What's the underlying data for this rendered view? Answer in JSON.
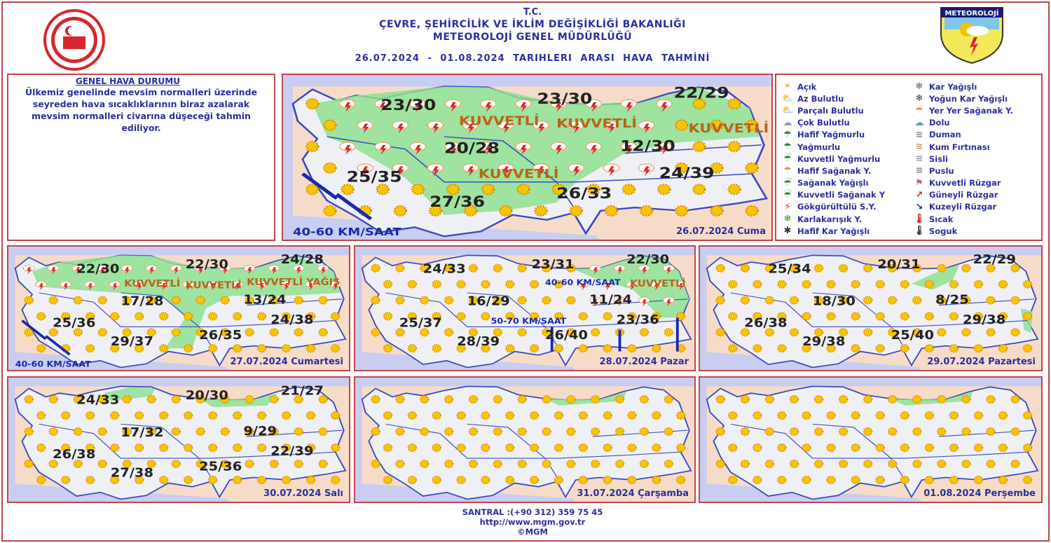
{
  "header": {
    "line1": "T.C.",
    "line2": "ÇEVRE, ŞEHİRCİLİK VE İKLİM DEĞİŞİKLİĞİ BAKANLIĞI",
    "line3": "METEOROLOJİ  GENEL  MÜDÜRLÜĞÜ",
    "line4": "26.07.2024  -  01.08.2024   TARIHLERI  ARASI  HAVA  TAHMİNİ"
  },
  "logos": {
    "right": "METEOROLOJİ"
  },
  "genel": {
    "title": "GENEL HAVA DURUMU",
    "text": "Ülkemiz genelinde mevsim normalleri üzerinde seyreden hava sıcaklıklarının biraz azalarak mevsim normalleri civarına düşeceği tahmin ediliyor."
  },
  "colors": {
    "accent": "#2a2fa0",
    "border": "#c0474c",
    "land": "#eef0f6",
    "sea": "#c9cdf0",
    "neighbor": "#f6dcc8",
    "rain_area": "#8fe08f"
  },
  "legend": [
    {
      "icon": "sun-icon",
      "label": "Açık"
    },
    {
      "icon": "sun-cloud-icon",
      "label": "Az Bulutlu"
    },
    {
      "icon": "partly-cloudy-icon",
      "label": "Parçalı Bulutlu"
    },
    {
      "icon": "cloudy-icon",
      "label": "Çok Bulutlu"
    },
    {
      "icon": "light-rain-icon",
      "label": "Hafif Yağmurlu"
    },
    {
      "icon": "rain-icon",
      "label": "Yağmurlu"
    },
    {
      "icon": "heavy-rain-icon",
      "label": "Kuvvetli Yağmurlu"
    },
    {
      "icon": "light-shower-icon",
      "label": "Hafif Sağanak Y."
    },
    {
      "icon": "shower-icon",
      "label": "Sağanak Yağışlı"
    },
    {
      "icon": "heavy-shower-icon",
      "label": "Kuvvetli Sağanak Y"
    },
    {
      "icon": "thunderstorm-icon",
      "label": "Gökgürültülü S.Y."
    },
    {
      "icon": "sleet-icon",
      "label": "Karlakarışık Y."
    },
    {
      "icon": "light-snow-icon",
      "label": "Hafif Kar Yağışlı"
    },
    {
      "icon": "snow-icon",
      "label": "Kar Yağışlı"
    },
    {
      "icon": "heavy-snow-icon",
      "label": "Yoğun Kar Yağışlı"
    },
    {
      "icon": "local-shower-icon",
      "label": "Yer Yer Sağanak Y."
    },
    {
      "icon": "hail-icon",
      "label": "Dolu"
    },
    {
      "icon": "smoke-icon",
      "label": "Duman"
    },
    {
      "icon": "sandstorm-icon",
      "label": "Kum Fırtınası"
    },
    {
      "icon": "fog-icon",
      "label": "Sisli"
    },
    {
      "icon": "haze-icon",
      "label": "Puslu"
    },
    {
      "icon": "strong-wind-icon",
      "label": "Kuvvetli Rüzgar"
    },
    {
      "icon": "south-wind-arrow-icon",
      "label": "Güneyli Rüzgar"
    },
    {
      "icon": "north-wind-arrow-icon",
      "label": "Kuzeyli Rüzgar"
    },
    {
      "icon": "hot-thermometer-icon",
      "label": "Sıcak"
    },
    {
      "icon": "cold-thermometer-icon",
      "label": "Soguk"
    }
  ],
  "maps": [
    {
      "date": "26.07.2024 Cuma",
      "temps": [
        "23/30",
        "23/30",
        "22/29",
        "20/28",
        "12/30",
        "25/35",
        "24/39",
        "27/36",
        "26/33"
      ],
      "labels": [
        "KUVVETLİ",
        "KUVVETLİ",
        "KUVVETLİ",
        "KUVVETLİ",
        "40-60 KM/SAAT"
      ]
    },
    {
      "date": "27.07.2024 Cumartesi",
      "temps": [
        "22/30",
        "22/30",
        "24/28",
        "17/28",
        "13/24",
        "25/36",
        "24/38",
        "29/37",
        "26/35"
      ],
      "labels": [
        "KUVVETLİ",
        "KUVVETLİ",
        "KUVVETLİ YAĞIŞ",
        "40-60 KM/SAAT"
      ]
    },
    {
      "date": "28.07.2024 Pazar",
      "temps": [
        "24/33",
        "23/31",
        "22/30",
        "16/29",
        "11/24",
        "25/37",
        "23/36",
        "28/39",
        "26/40"
      ],
      "labels": [
        "40-60 KM/SAAT",
        "50-70 KM/SAAT",
        "KUVVETLİ"
      ]
    },
    {
      "date": "29.07.2024 Pazartesi",
      "temps": [
        "25/34",
        "20/31",
        "22/29",
        "18/30",
        "8/25",
        "26/38",
        "29/38",
        "29/38",
        "25/40"
      ],
      "labels": []
    },
    {
      "date": "30.07.2024 Salı",
      "temps": [
        "24/33",
        "20/30",
        "21/27",
        "17/32",
        "9/29",
        "26/38",
        "22/39",
        "27/38",
        "25/36"
      ],
      "labels": []
    },
    {
      "date": "31.07.2024 Çarşamba",
      "temps": [],
      "labels": []
    },
    {
      "date": "01.08.2024 Perşembe",
      "temps": [],
      "labels": []
    }
  ],
  "footer": {
    "phone": "SANTRAL :(+90 312) 359 75 45",
    "url": "http://www.mgm.gov.tr",
    "copyright": "©MGM"
  }
}
